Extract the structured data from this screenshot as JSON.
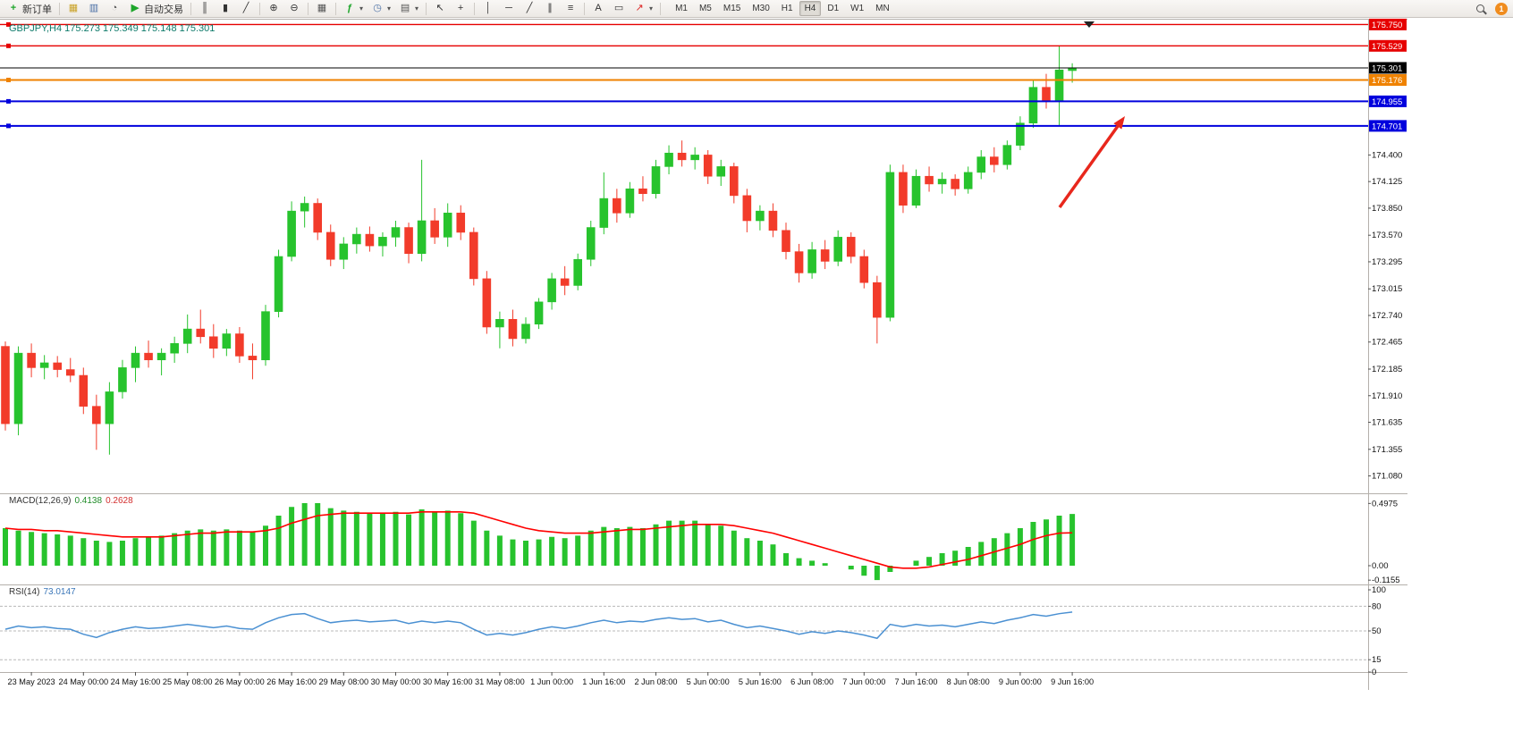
{
  "toolbar": {
    "new_order_label": "新订单",
    "auto_trading_label": "自动交易",
    "timeframes": [
      "M1",
      "M5",
      "M15",
      "M30",
      "H1",
      "H4",
      "D1",
      "W1",
      "MN"
    ],
    "active_timeframe": "H4",
    "notification_count": "1"
  },
  "icons": {
    "new-order": "+",
    "profile": "▦",
    "market-watch": "▥",
    "navigator": "◔",
    "auto-trading": "▶",
    "bar-chart": "║",
    "candlestick": "▮",
    "line-chart": "╱",
    "zoom-in": "⊕",
    "zoom-out": "⊖",
    "tile-windows": "▦",
    "indicators": "ƒ",
    "clock": "◷",
    "template": "▤",
    "cursor": "↖",
    "crosshair": "+",
    "vline": "│",
    "hline": "─",
    "trendline": "╱",
    "channel": "∥",
    "fibo": "≡",
    "text": "A",
    "label": "▭",
    "arrows": "↗",
    "caret": "▾"
  },
  "chart_data": {
    "type": "candlestick",
    "symbol": "GBPJPY",
    "period": "H4",
    "title_symbol": "GBPJPY,H4",
    "title_ohlc": "175.273 175.349 175.148 175.301",
    "ohlc_current": {
      "open": 175.273,
      "high": 175.349,
      "low": 175.148,
      "close": 175.301
    },
    "up_color": "#27c32d",
    "down_color": "#f23b2a",
    "price_axis": {
      "regular_labels": [
        "174.400",
        "174.125",
        "173.850",
        "173.570",
        "173.295",
        "173.015",
        "172.740",
        "172.465",
        "172.185",
        "171.910",
        "171.635",
        "171.355",
        "171.080"
      ],
      "range_min": 170.9,
      "range_max": 175.8
    },
    "level_lines": [
      {
        "price": 175.75,
        "label": "175.750",
        "color": "#e60000",
        "width": 1.4
      },
      {
        "price": 175.529,
        "label": "175.529",
        "color": "#e60000",
        "width": 1.4
      },
      {
        "price": 175.176,
        "label": "175.176",
        "color": "#ef8200",
        "width": 2
      },
      {
        "price": 174.955,
        "label": "174.955",
        "color": "#0000dd",
        "width": 2
      },
      {
        "price": 174.701,
        "label": "174.701",
        "color": "#0000dd",
        "width": 2
      }
    ],
    "bid_line": {
      "price": 175.301,
      "label": "175.301",
      "color": "#000000"
    },
    "time_labels": [
      "23 May 2023",
      "24 May 00:00",
      "24 May 16:00",
      "25 May 08:00",
      "26 May 00:00",
      "26 May 16:00",
      "29 May 08:00",
      "30 May 00:00",
      "30 May 16:00",
      "31 May 08:00",
      "1 Jun 00:00",
      "1 Jun 16:00",
      "2 Jun 08:00",
      "5 Jun 00:00",
      "5 Jun 16:00",
      "6 Jun 08:00",
      "7 Jun 00:00",
      "7 Jun 16:00",
      "8 Jun 08:00",
      "9 Jun 00:00",
      "9 Jun 16:00"
    ],
    "candles": [
      [
        172.42,
        172.47,
        171.55,
        171.62
      ],
      [
        171.62,
        172.42,
        171.5,
        172.35
      ],
      [
        172.35,
        172.45,
        172.1,
        172.2
      ],
      [
        172.2,
        172.33,
        172.08,
        172.25
      ],
      [
        172.25,
        172.32,
        172.1,
        172.18
      ],
      [
        172.18,
        172.3,
        172.05,
        172.12
      ],
      [
        172.12,
        172.2,
        171.72,
        171.8
      ],
      [
        171.8,
        171.92,
        171.35,
        171.62
      ],
      [
        171.62,
        172.05,
        171.3,
        171.95
      ],
      [
        171.95,
        172.28,
        171.88,
        172.2
      ],
      [
        172.2,
        172.42,
        172.05,
        172.35
      ],
      [
        172.35,
        172.48,
        172.2,
        172.28
      ],
      [
        172.28,
        172.4,
        172.12,
        172.35
      ],
      [
        172.35,
        172.52,
        172.25,
        172.45
      ],
      [
        172.45,
        172.75,
        172.35,
        172.6
      ],
      [
        172.6,
        172.8,
        172.45,
        172.52
      ],
      [
        172.52,
        172.65,
        172.3,
        172.4
      ],
      [
        172.4,
        172.6,
        172.32,
        172.55
      ],
      [
        172.55,
        172.62,
        172.25,
        172.32
      ],
      [
        172.32,
        172.45,
        172.08,
        172.28
      ],
      [
        172.28,
        172.85,
        172.22,
        172.78
      ],
      [
        172.78,
        173.42,
        172.72,
        173.35
      ],
      [
        173.35,
        173.92,
        173.3,
        173.82
      ],
      [
        173.82,
        173.97,
        173.65,
        173.9
      ],
      [
        173.9,
        173.95,
        173.52,
        173.6
      ],
      [
        173.6,
        173.68,
        173.25,
        173.32
      ],
      [
        173.32,
        173.55,
        173.22,
        173.48
      ],
      [
        173.48,
        173.65,
        173.38,
        173.58
      ],
      [
        173.58,
        173.66,
        173.4,
        173.46
      ],
      [
        173.46,
        173.6,
        173.35,
        173.55
      ],
      [
        173.55,
        173.72,
        173.45,
        173.65
      ],
      [
        173.65,
        173.7,
        173.28,
        173.38
      ],
      [
        173.38,
        174.35,
        173.3,
        173.72
      ],
      [
        173.72,
        173.85,
        173.48,
        173.55
      ],
      [
        173.55,
        173.9,
        173.45,
        173.8
      ],
      [
        173.8,
        173.88,
        173.52,
        173.6
      ],
      [
        173.6,
        173.65,
        173.05,
        173.12
      ],
      [
        173.12,
        173.2,
        172.55,
        172.62
      ],
      [
        172.62,
        172.78,
        172.4,
        172.7
      ],
      [
        172.7,
        172.8,
        172.42,
        172.5
      ],
      [
        172.5,
        172.72,
        172.45,
        172.65
      ],
      [
        172.65,
        172.92,
        172.6,
        172.88
      ],
      [
        172.88,
        173.18,
        172.8,
        173.12
      ],
      [
        173.12,
        173.25,
        172.95,
        173.05
      ],
      [
        173.05,
        173.38,
        173.0,
        173.32
      ],
      [
        173.32,
        173.72,
        173.25,
        173.65
      ],
      [
        173.65,
        174.22,
        173.58,
        173.95
      ],
      [
        173.95,
        174.05,
        173.7,
        173.8
      ],
      [
        173.8,
        174.12,
        173.75,
        174.05
      ],
      [
        174.05,
        174.18,
        173.92,
        174.0
      ],
      [
        174.0,
        174.35,
        173.95,
        174.28
      ],
      [
        174.28,
        174.5,
        174.2,
        174.42
      ],
      [
        174.42,
        174.55,
        174.28,
        174.35
      ],
      [
        174.35,
        174.48,
        174.25,
        174.4
      ],
      [
        174.4,
        174.45,
        174.1,
        174.18
      ],
      [
        174.18,
        174.35,
        174.08,
        174.28
      ],
      [
        174.28,
        174.32,
        173.9,
        173.98
      ],
      [
        173.98,
        174.05,
        173.6,
        173.72
      ],
      [
        173.72,
        173.88,
        173.62,
        173.82
      ],
      [
        173.82,
        173.9,
        173.55,
        173.62
      ],
      [
        173.62,
        173.7,
        173.32,
        173.4
      ],
      [
        173.4,
        173.48,
        173.08,
        173.18
      ],
      [
        173.18,
        173.5,
        173.12,
        173.42
      ],
      [
        173.42,
        173.52,
        173.22,
        173.3
      ],
      [
        173.3,
        173.62,
        173.25,
        173.55
      ],
      [
        173.55,
        173.6,
        173.28,
        173.35
      ],
      [
        173.35,
        173.42,
        173.02,
        173.08
      ],
      [
        173.08,
        173.15,
        172.45,
        172.72
      ],
      [
        172.72,
        174.3,
        172.68,
        174.22
      ],
      [
        174.22,
        174.3,
        173.8,
        173.88
      ],
      [
        173.88,
        174.25,
        173.85,
        174.18
      ],
      [
        174.18,
        174.28,
        174.02,
        174.1
      ],
      [
        174.1,
        174.22,
        174.0,
        174.15
      ],
      [
        174.15,
        174.2,
        173.98,
        174.05
      ],
      [
        174.05,
        174.28,
        174.0,
        174.22
      ],
      [
        174.22,
        174.45,
        174.15,
        174.38
      ],
      [
        174.38,
        174.48,
        174.22,
        174.3
      ],
      [
        174.3,
        174.55,
        174.25,
        174.5
      ],
      [
        174.5,
        174.8,
        174.45,
        174.73
      ],
      [
        174.73,
        175.18,
        174.68,
        175.1
      ],
      [
        175.1,
        175.24,
        174.88,
        174.96
      ],
      [
        174.96,
        175.53,
        174.7,
        175.28
      ],
      [
        175.273,
        175.349,
        175.148,
        175.301
      ]
    ],
    "indicators": {
      "macd": {
        "label": "MACD(12,26,9)",
        "value_hist": "0.4138",
        "value_signal": "0.2628",
        "hist_color": "#27c32d",
        "signal_color": "#ff0000",
        "axis_labels": [
          "0.4975",
          "0.00",
          "-0.1155"
        ],
        "axis_values": [
          0.4975,
          0,
          -0.1155
        ],
        "histogram": [
          0.3,
          0.28,
          0.27,
          0.26,
          0.25,
          0.24,
          0.22,
          0.2,
          0.19,
          0.2,
          0.22,
          0.23,
          0.24,
          0.26,
          0.28,
          0.29,
          0.28,
          0.29,
          0.28,
          0.27,
          0.32,
          0.4,
          0.47,
          0.5,
          0.5,
          0.46,
          0.44,
          0.43,
          0.42,
          0.42,
          0.43,
          0.41,
          0.45,
          0.43,
          0.44,
          0.42,
          0.36,
          0.28,
          0.24,
          0.21,
          0.2,
          0.21,
          0.23,
          0.22,
          0.24,
          0.28,
          0.31,
          0.3,
          0.31,
          0.3,
          0.33,
          0.36,
          0.36,
          0.36,
          0.33,
          0.32,
          0.28,
          0.22,
          0.2,
          0.17,
          0.1,
          0.06,
          0.04,
          0.02,
          0.0,
          -0.03,
          -0.08,
          -0.115,
          -0.05,
          0.0,
          0.04,
          0.07,
          0.1,
          0.12,
          0.15,
          0.19,
          0.22,
          0.26,
          0.3,
          0.35,
          0.37,
          0.4,
          0.4138
        ],
        "signal": [
          0.3,
          0.29,
          0.29,
          0.28,
          0.28,
          0.27,
          0.26,
          0.25,
          0.24,
          0.23,
          0.23,
          0.23,
          0.23,
          0.24,
          0.25,
          0.26,
          0.26,
          0.27,
          0.27,
          0.27,
          0.28,
          0.3,
          0.34,
          0.37,
          0.4,
          0.41,
          0.42,
          0.42,
          0.42,
          0.42,
          0.42,
          0.42,
          0.43,
          0.43,
          0.43,
          0.43,
          0.42,
          0.39,
          0.36,
          0.33,
          0.3,
          0.28,
          0.27,
          0.26,
          0.26,
          0.26,
          0.27,
          0.28,
          0.29,
          0.29,
          0.3,
          0.31,
          0.32,
          0.33,
          0.33,
          0.33,
          0.32,
          0.3,
          0.28,
          0.26,
          0.23,
          0.2,
          0.17,
          0.14,
          0.11,
          0.08,
          0.05,
          0.02,
          -0.01,
          -0.02,
          -0.02,
          -0.01,
          0.01,
          0.03,
          0.05,
          0.08,
          0.11,
          0.14,
          0.17,
          0.21,
          0.24,
          0.26,
          0.2628
        ]
      },
      "rsi": {
        "label": "RSI(14)",
        "value": "73.0147",
        "line_color": "#4a90d2",
        "axis_labels": [
          "100",
          "80",
          "50",
          "15",
          "0"
        ],
        "axis_values": [
          100,
          80,
          50,
          15,
          0
        ],
        "levels": [
          80,
          50,
          15
        ],
        "values": [
          52,
          56,
          54,
          55,
          53,
          52,
          46,
          42,
          48,
          52,
          55,
          53,
          54,
          56,
          58,
          56,
          54,
          56,
          53,
          52,
          60,
          66,
          70,
          71,
          65,
          60,
          62,
          63,
          61,
          62,
          63,
          59,
          62,
          60,
          62,
          60,
          52,
          45,
          47,
          45,
          48,
          52,
          55,
          53,
          56,
          60,
          63,
          60,
          62,
          61,
          64,
          66,
          64,
          65,
          61,
          63,
          58,
          54,
          56,
          53,
          50,
          46,
          49,
          47,
          50,
          48,
          45,
          41,
          58,
          55,
          58,
          56,
          57,
          55,
          58,
          61,
          59,
          63,
          66,
          70,
          68,
          71,
          73.0147
        ]
      }
    },
    "annotation_arrow": {
      "from": [
        1185,
        232
      ],
      "to": [
        1258,
        130
      ],
      "color": "#e8271c"
    }
  }
}
